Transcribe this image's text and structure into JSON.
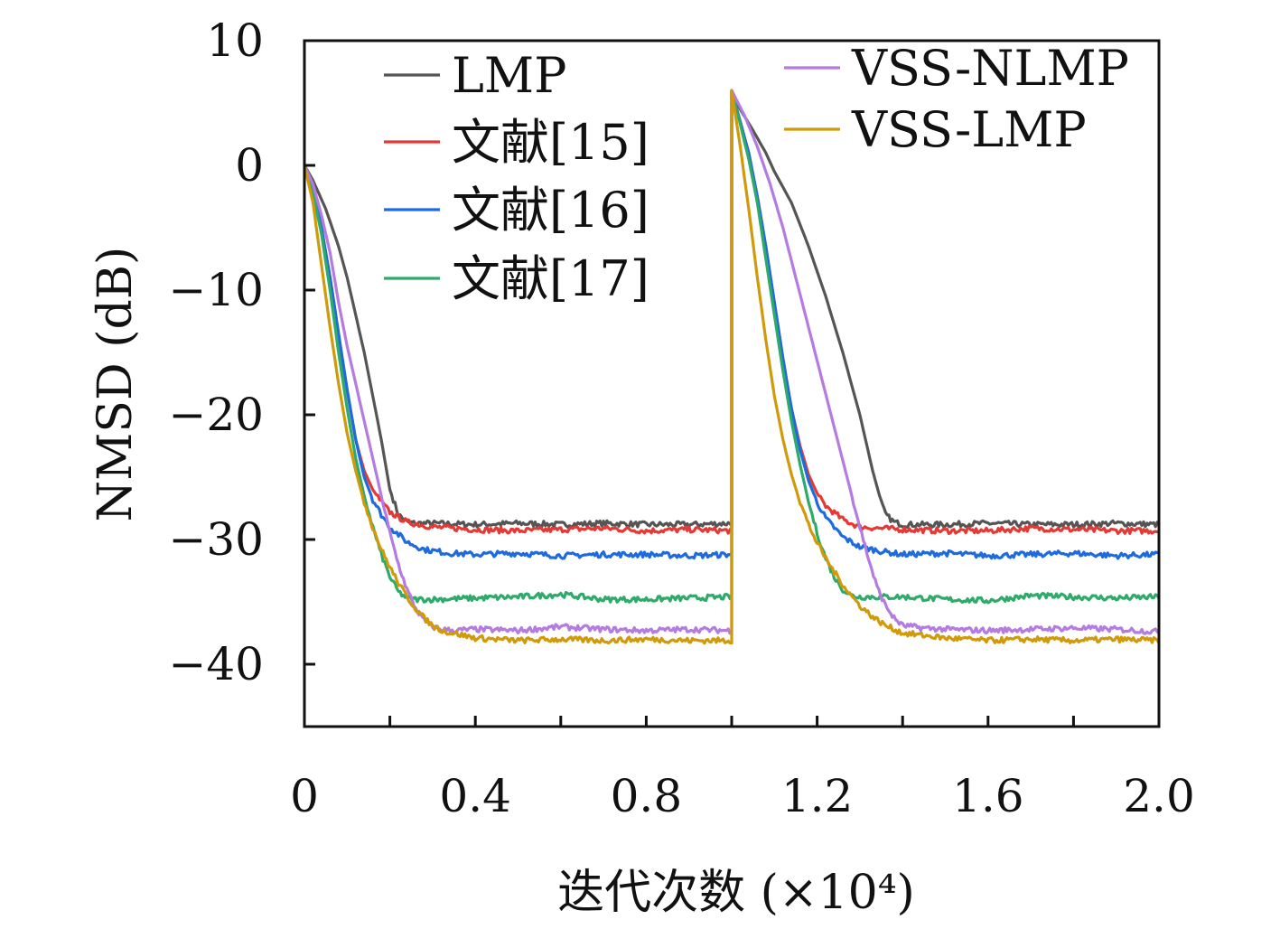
{
  "chart_data": {
    "type": "line",
    "title": "",
    "xlabel": "迭代次数 (×10⁴)",
    "ylabel": "NMSD (dB)",
    "xlim": [
      0,
      2.0
    ],
    "ylim": [
      -45,
      10
    ],
    "xticks": [
      "0",
      "0.4",
      "0.8",
      "1.2",
      "1.6",
      "2.0"
    ],
    "xtick_values": [
      0,
      0.4,
      0.8,
      1.2,
      1.6,
      2.0
    ],
    "yticks": [
      "10",
      "0",
      "−10",
      "−20",
      "−30",
      "−40"
    ],
    "ytick_values": [
      10,
      0,
      -10,
      -20,
      -30,
      -40
    ],
    "grid": false,
    "legend_placement": "top",
    "series": [
      {
        "name": "LMP",
        "color": "#555555",
        "x": [
          0,
          0.02,
          0.05,
          0.08,
          0.1,
          0.12,
          0.14,
          0.16,
          0.18,
          0.2,
          0.22,
          0.24,
          0.26,
          0.3,
          0.4,
          0.5,
          0.6,
          0.7,
          0.8,
          0.9,
          1.0,
          1.0001,
          1.02,
          1.05,
          1.08,
          1.1,
          1.14,
          1.18,
          1.22,
          1.26,
          1.3,
          1.33,
          1.35,
          1.36,
          1.38,
          1.4,
          1.45,
          1.5,
          1.6,
          1.7,
          1.8,
          1.9,
          2.0
        ],
        "y": [
          0,
          -1.2,
          -3.5,
          -6.5,
          -9,
          -12,
          -15,
          -18.5,
          -22,
          -26,
          -28,
          -28.6,
          -28.7,
          -28.7,
          -28.8,
          -28.7,
          -28.8,
          -28.7,
          -28.8,
          -28.8,
          -28.7,
          6,
          4.5,
          2.8,
          1,
          -0.5,
          -3,
          -6.5,
          -10.5,
          -15,
          -20,
          -24.5,
          -27,
          -28,
          -28.6,
          -28.8,
          -28.8,
          -28.8,
          -28.7,
          -28.8,
          -28.8,
          -28.7,
          -28.8
        ]
      },
      {
        "name": "文献[15]",
        "color": "#e53935",
        "x": [
          0,
          0.02,
          0.04,
          0.06,
          0.08,
          0.1,
          0.12,
          0.14,
          0.16,
          0.18,
          0.2,
          0.24,
          0.3,
          0.4,
          0.5,
          0.6,
          0.7,
          0.8,
          0.9,
          1.0,
          1.0001,
          1.02,
          1.04,
          1.06,
          1.08,
          1.1,
          1.12,
          1.14,
          1.16,
          1.18,
          1.2,
          1.22,
          1.26,
          1.3,
          1.4,
          1.5,
          1.6,
          1.7,
          1.8,
          1.9,
          2.0
        ],
        "y": [
          0,
          -2,
          -5,
          -9,
          -13.5,
          -18,
          -22,
          -24.5,
          -26,
          -27,
          -27.8,
          -28.6,
          -29,
          -29.2,
          -29.3,
          -29.2,
          -29.1,
          -29.3,
          -29.2,
          -29.3,
          6,
          3.5,
          1,
          -2.5,
          -6.5,
          -11,
          -15.5,
          -19.5,
          -22.5,
          -24.8,
          -26.3,
          -27.3,
          -28.4,
          -29,
          -29.2,
          -29.3,
          -29.3,
          -29.1,
          -29.2,
          -29.3,
          -29.3
        ]
      },
      {
        "name": "文献[16]",
        "color": "#1e6be0",
        "x": [
          0,
          0.02,
          0.04,
          0.06,
          0.08,
          0.1,
          0.12,
          0.14,
          0.16,
          0.18,
          0.2,
          0.24,
          0.28,
          0.34,
          0.4,
          0.5,
          0.6,
          0.7,
          0.8,
          0.9,
          1.0,
          1.0001,
          1.02,
          1.04,
          1.06,
          1.08,
          1.1,
          1.12,
          1.14,
          1.16,
          1.18,
          1.2,
          1.22,
          1.26,
          1.3,
          1.36,
          1.4,
          1.5,
          1.6,
          1.7,
          1.8,
          1.9,
          2.0
        ],
        "y": [
          0,
          -2,
          -5,
          -9,
          -13.5,
          -18,
          -22,
          -25,
          -26.8,
          -28,
          -29,
          -30.2,
          -30.8,
          -31.1,
          -31.2,
          -31.1,
          -31.3,
          -31.2,
          -31.2,
          -31.3,
          -31.2,
          6,
          3.5,
          1,
          -2.5,
          -6.5,
          -11,
          -15.5,
          -19.5,
          -22.8,
          -25.3,
          -27,
          -28.3,
          -29.8,
          -30.6,
          -31,
          -31.2,
          -31.1,
          -31.3,
          -31.2,
          -31.1,
          -31.3,
          -31.2
        ]
      },
      {
        "name": "文献[17]",
        "color": "#2eaa6a",
        "x": [
          0,
          0.02,
          0.04,
          0.06,
          0.08,
          0.1,
          0.12,
          0.14,
          0.16,
          0.18,
          0.2,
          0.22,
          0.24,
          0.26,
          0.3,
          0.4,
          0.5,
          0.6,
          0.7,
          0.8,
          0.9,
          1.0,
          1.0001,
          1.02,
          1.04,
          1.06,
          1.08,
          1.1,
          1.12,
          1.14,
          1.16,
          1.18,
          1.2,
          1.22,
          1.24,
          1.26,
          1.28,
          1.3,
          1.4,
          1.5,
          1.6,
          1.7,
          1.8,
          1.9,
          2.0
        ],
        "y": [
          0,
          -2.2,
          -5.5,
          -10,
          -15,
          -19.5,
          -23.5,
          -26.5,
          -29,
          -31.2,
          -33,
          -34.2,
          -34.7,
          -34.8,
          -34.8,
          -34.7,
          -34.6,
          -34.4,
          -34.8,
          -34.8,
          -34.7,
          -34.6,
          6,
          3.3,
          0.5,
          -3,
          -7.5,
          -12,
          -16.5,
          -20.5,
          -24,
          -27,
          -29.5,
          -31.5,
          -33,
          -34,
          -34.5,
          -34.6,
          -34.6,
          -34.8,
          -34.9,
          -34.5,
          -34.6,
          -34.7,
          -34.6
        ]
      },
      {
        "name": "VSS-NLMP",
        "color": "#b57be0",
        "x": [
          0,
          0.02,
          0.04,
          0.06,
          0.08,
          0.1,
          0.12,
          0.14,
          0.16,
          0.18,
          0.2,
          0.22,
          0.24,
          0.26,
          0.28,
          0.3,
          0.32,
          0.35,
          0.4,
          0.5,
          0.6,
          0.7,
          0.8,
          0.9,
          1.0,
          1.0001,
          1.03,
          1.06,
          1.09,
          1.12,
          1.15,
          1.18,
          1.21,
          1.24,
          1.27,
          1.3,
          1.32,
          1.34,
          1.36,
          1.38,
          1.4,
          1.45,
          1.5,
          1.6,
          1.7,
          1.8,
          1.9,
          2.0
        ],
        "y": [
          0,
          -1.5,
          -4,
          -7,
          -11,
          -14.5,
          -17.5,
          -20.5,
          -23.5,
          -26.5,
          -29.5,
          -32,
          -34,
          -35.5,
          -36.5,
          -37,
          -37.2,
          -37.3,
          -37.2,
          -37.3,
          -37,
          -37.2,
          -37.3,
          -37.2,
          -37.3,
          6,
          4,
          1.5,
          -1.5,
          -5,
          -9,
          -13,
          -17,
          -21,
          -25,
          -29,
          -31.5,
          -33.8,
          -35.3,
          -36.3,
          -36.9,
          -37.1,
          -37.2,
          -37.3,
          -37.2,
          -37.1,
          -37.2,
          -37.4
        ]
      },
      {
        "name": "VSS-LMP",
        "color": "#d09a0a",
        "x": [
          0,
          0.02,
          0.04,
          0.06,
          0.08,
          0.1,
          0.12,
          0.14,
          0.16,
          0.18,
          0.2,
          0.22,
          0.24,
          0.26,
          0.28,
          0.3,
          0.33,
          0.36,
          0.4,
          0.5,
          0.6,
          0.7,
          0.8,
          0.9,
          1.0,
          1.0001,
          1.02,
          1.04,
          1.06,
          1.08,
          1.1,
          1.12,
          1.14,
          1.16,
          1.18,
          1.2,
          1.22,
          1.24,
          1.26,
          1.28,
          1.3,
          1.33,
          1.36,
          1.4,
          1.5,
          1.6,
          1.7,
          1.8,
          1.9,
          2.0
        ],
        "y": [
          0,
          -3,
          -8,
          -13,
          -17.5,
          -21.5,
          -24.5,
          -27,
          -29,
          -30.8,
          -32.2,
          -33.5,
          -34.6,
          -35.5,
          -36.3,
          -36.9,
          -37.4,
          -37.6,
          -37.9,
          -38.1,
          -38,
          -38.1,
          -38,
          -38.1,
          -38.1,
          6,
          1.5,
          -3.5,
          -9,
          -14,
          -18.5,
          -22,
          -24.8,
          -27,
          -28.8,
          -30.3,
          -31.5,
          -32.6,
          -33.6,
          -34.5,
          -35.3,
          -36.2,
          -36.9,
          -37.5,
          -37.9,
          -38.1,
          -38,
          -38.1,
          -38,
          -38.1
        ]
      }
    ]
  }
}
